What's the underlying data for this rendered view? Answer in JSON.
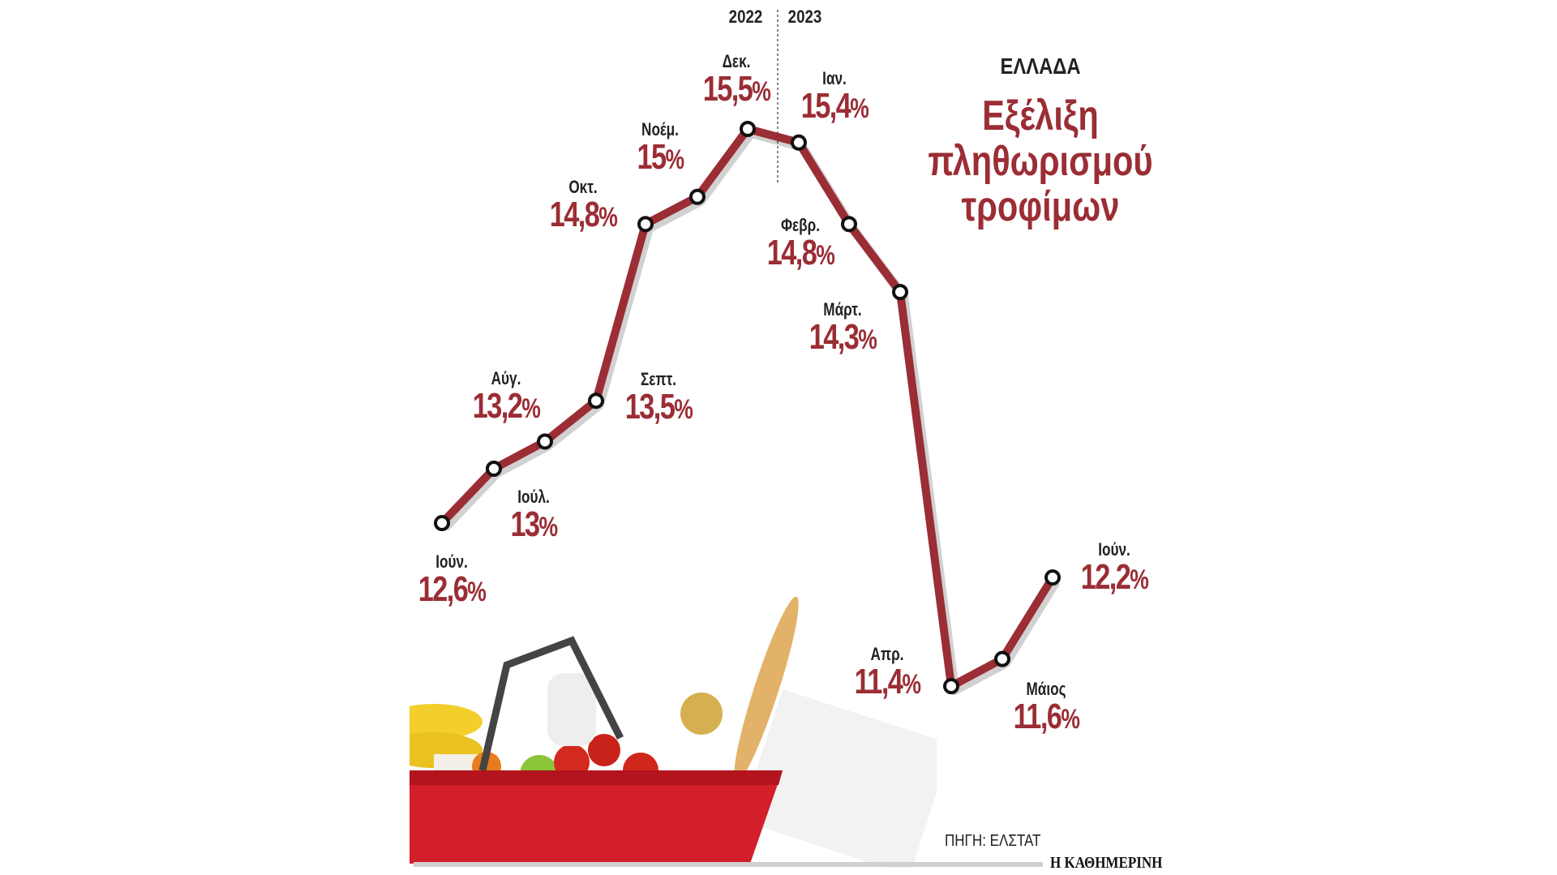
{
  "chart_data": {
    "type": "line",
    "title": "Εξέλιξη πληθωρισμού τροφίμων",
    "subtitle": "ΕΛΛΑΔΑ",
    "year_labels": [
      "2022",
      "2023"
    ],
    "categories": [
      "Ιούν.",
      "Ιούλ.",
      "Αύγ.",
      "Σεπτ.",
      "Οκτ.",
      "Νοέμ.",
      "Δεκ.",
      "Ιαν.",
      "Φεβρ.",
      "Μάρτ.",
      "Απρ.",
      "Μάιος",
      "Ιούν."
    ],
    "values": [
      12.6,
      13.0,
      13.2,
      13.5,
      14.8,
      15.0,
      15.5,
      15.4,
      14.8,
      14.3,
      11.4,
      11.6,
      12.2
    ],
    "value_labels": [
      "12,6",
      "13",
      "13,2",
      "13,5",
      "14,8",
      "15",
      "15,5",
      "15,4",
      "14,8",
      "14,3",
      "11,4",
      "11,6",
      "12,2"
    ],
    "unit": "%",
    "grid": false,
    "colors": {
      "line": "#9b2d35",
      "marker_fill": "#ffffff",
      "marker_stroke": "#111111"
    }
  },
  "footer": {
    "source": "ΠΗΓΗ: ΕΛΣΤΑΤ",
    "brand": "Η ΚΑΘΗΜΕΡΙΝΗ"
  }
}
